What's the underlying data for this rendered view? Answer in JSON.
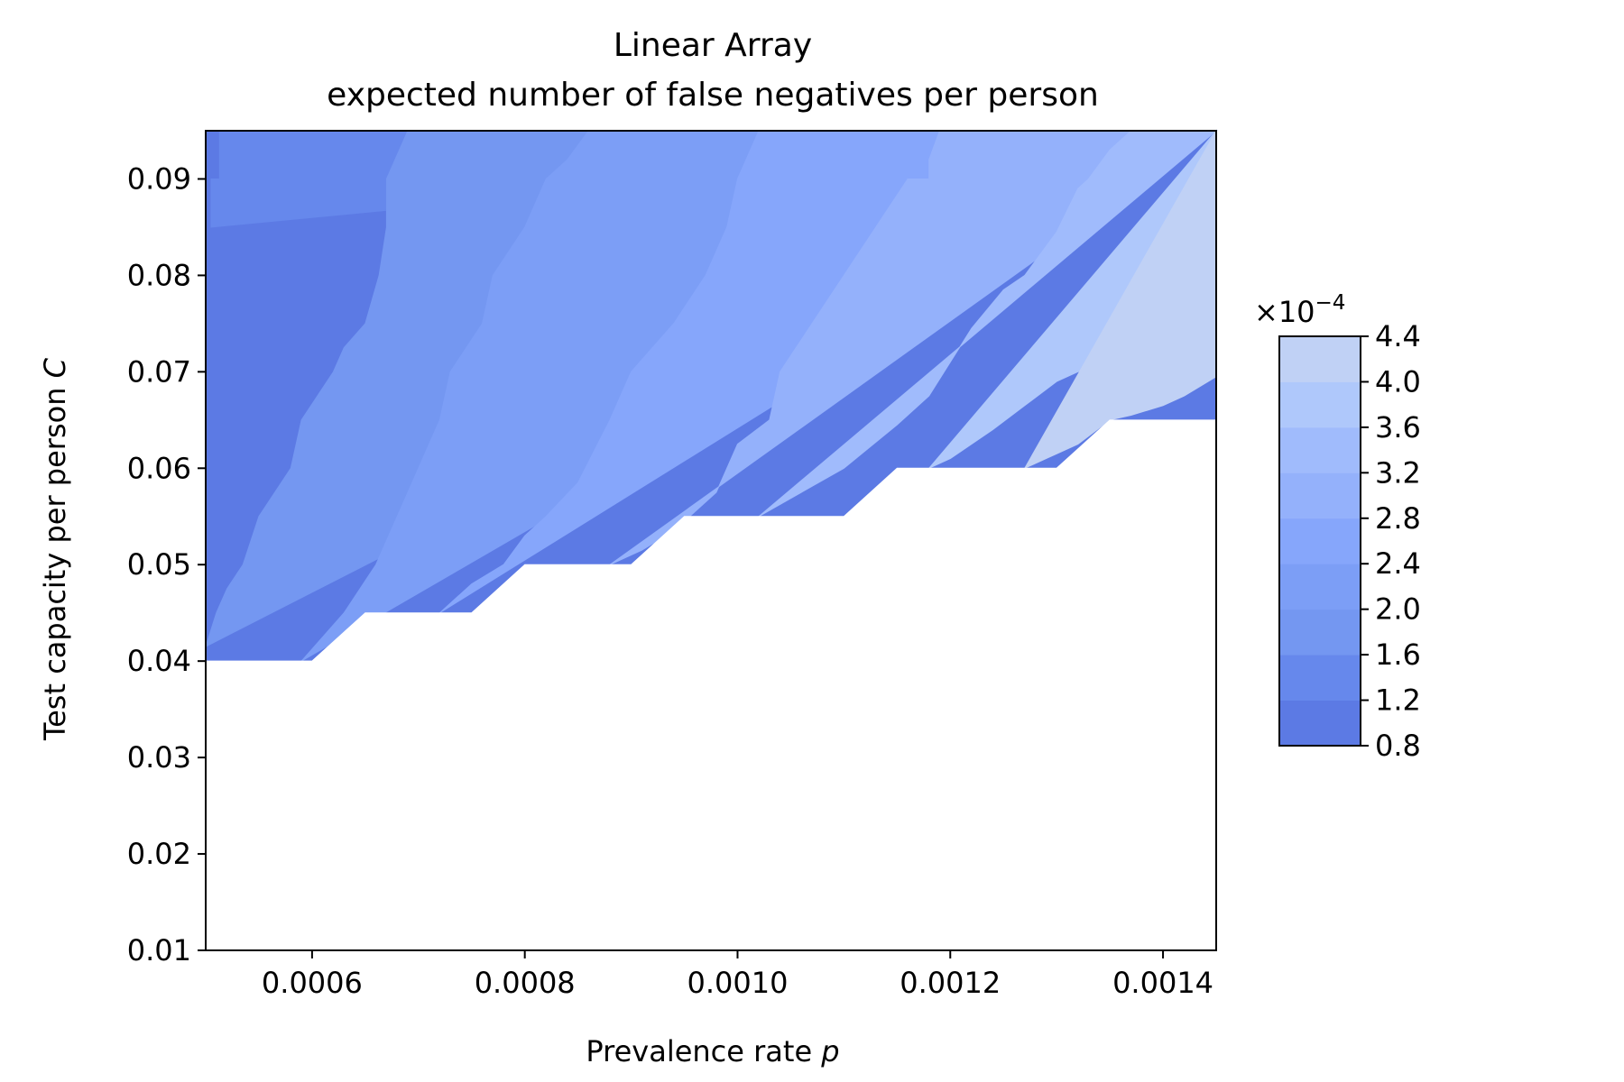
{
  "chart_data": {
    "type": "contourf",
    "title": "Linear Array",
    "subtitle": "expected number of false negatives per person",
    "xlabel": "Prevalence rate",
    "xlabel_var": "p",
    "ylabel": "Test capacity per person",
    "ylabel_var": "C",
    "xlim": [
      0.0005,
      0.00145
    ],
    "ylim": [
      0.01,
      0.095
    ],
    "x_ticks": [
      "0.0006",
      "0.0008",
      "0.0010",
      "0.0012",
      "0.0014"
    ],
    "y_ticks": [
      "0.01",
      "0.02",
      "0.03",
      "0.04",
      "0.05",
      "0.06",
      "0.07",
      "0.08",
      "0.09"
    ],
    "colorbar": {
      "multiplier": "×10",
      "exponent": "−4",
      "levels": [
        0.8,
        1.2,
        1.6,
        2.0,
        2.4,
        2.8,
        3.2,
        3.6,
        4.0,
        4.4
      ],
      "tick_labels": [
        "0.8",
        "1.2",
        "1.6",
        "2.0",
        "2.4",
        "2.8",
        "3.2",
        "3.6",
        "4.0",
        "4.4"
      ],
      "colors": [
        "#5c7ae4",
        "#6688ec",
        "#7497f1",
        "#7c9ef6",
        "#86a6fb",
        "#94b1fb",
        "#a0bbfc",
        "#afc8fb",
        "#c0d1f5"
      ]
    },
    "feasible_boundary": {
      "x": [
        0.0005,
        0.0006,
        0.00065,
        0.00075,
        0.0008,
        0.0009,
        0.00095,
        0.0011,
        0.00115,
        0.0013,
        0.00135,
        0.00145
      ],
      "y": [
        0.04,
        0.04,
        0.045,
        0.045,
        0.05,
        0.05,
        0.055,
        0.055,
        0.06,
        0.06,
        0.065,
        0.065
      ]
    },
    "contour_boundaries": [
      {
        "x": [
          0.000505,
          0.000505,
          0.000513,
          0.000513
        ],
        "y": [
          0.085,
          0.09,
          0.09,
          0.095
        ]
      },
      {
        "x": [
          0.0005,
          0.00051,
          0.00052,
          0.000535,
          0.00055,
          0.00058,
          0.00059,
          0.00062,
          0.00063,
          0.00065,
          0.000663,
          0.00067,
          0.00067,
          0.00069
        ],
        "y": [
          0.0415,
          0.045,
          0.0475,
          0.05,
          0.055,
          0.06,
          0.065,
          0.07,
          0.0725,
          0.075,
          0.08,
          0.085,
          0.09,
          0.095
        ]
      },
      {
        "x": [
          0.00059,
          0.00061,
          0.00063,
          0.00066,
          0.00068,
          0.0007,
          0.00072,
          0.00073,
          0.00076,
          0.00077,
          0.0008,
          0.00082,
          0.00084,
          0.00086
        ],
        "y": [
          0.04,
          0.0425,
          0.045,
          0.05,
          0.055,
          0.06,
          0.065,
          0.07,
          0.075,
          0.08,
          0.085,
          0.09,
          0.092,
          0.095
        ]
      },
      {
        "x": [
          0.00072,
          0.00075,
          0.00078,
          0.0008,
          0.00082,
          0.00085,
          0.00088,
          0.0009,
          0.00092,
          0.00094,
          0.00097,
          0.00099,
          0.001,
          0.00102
        ],
        "y": [
          0.045,
          0.048,
          0.05,
          0.053,
          0.055,
          0.0585,
          0.065,
          0.07,
          0.0725,
          0.075,
          0.08,
          0.085,
          0.09,
          0.095
        ]
      },
      {
        "x": [
          0.00088,
          0.00091,
          0.00094,
          0.00098,
          0.001,
          0.00103,
          0.00104,
          0.00107,
          0.0011,
          0.00113,
          0.00116,
          0.00118,
          0.00118,
          0.00119
        ],
        "y": [
          0.05,
          0.0515,
          0.0535,
          0.0575,
          0.0625,
          0.065,
          0.07,
          0.075,
          0.08,
          0.085,
          0.09,
          0.09,
          0.092,
          0.095
        ]
      },
      {
        "x": [
          0.00102,
          0.00106,
          0.0011,
          0.00115,
          0.00118,
          0.0012,
          0.00122,
          0.00125,
          0.00127,
          0.0013,
          0.00132,
          0.00133,
          0.00135,
          0.00137
        ],
        "y": [
          0.055,
          0.0575,
          0.06,
          0.0645,
          0.0675,
          0.071,
          0.0745,
          0.0785,
          0.08,
          0.0845,
          0.089,
          0.09,
          0.093,
          0.095
        ]
      },
      {
        "x": [
          0.00118,
          0.0012,
          0.00124,
          0.00127,
          0.0013,
          0.00133,
          0.00134,
          0.00135,
          0.00137,
          0.00139,
          0.00141,
          0.00145
        ],
        "y": [
          0.06,
          0.061,
          0.064,
          0.0665,
          0.069,
          0.0705,
          0.072,
          0.0735,
          0.0755,
          0.078,
          0.08,
          0.0845
        ]
      },
      {
        "x": [
          0.00127,
          0.0013,
          0.00132,
          0.00135,
          0.00137,
          0.0014,
          0.00142,
          0.00145
        ],
        "y": [
          0.06,
          0.0615,
          0.0625,
          0.065,
          0.0655,
          0.0665,
          0.0675,
          0.0695
        ]
      }
    ]
  }
}
